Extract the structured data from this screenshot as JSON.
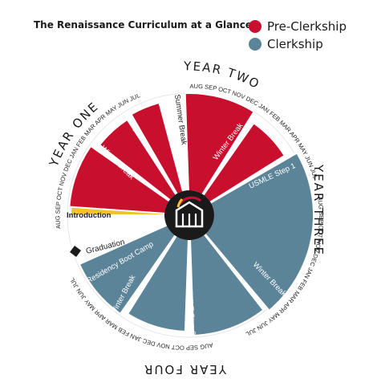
{
  "header": {
    "title": "The Renaissance Curriculum at a Glance:"
  },
  "legend": [
    {
      "label": "Pre-Clerkship",
      "color": "#c8102e"
    },
    {
      "label": "Clerkship",
      "color": "#5b8499"
    }
  ],
  "colors": {
    "gold": "#f3c32b",
    "dark": "#222222"
  },
  "years": {
    "one": "YEAR ONE",
    "two": "YEAR TWO",
    "three": "YEAR THREE",
    "four": "YEAR FOUR"
  },
  "labels": {
    "winter_break_1": "Winter Break",
    "spring_break": "Spring Break",
    "summer_break": "Summer Break",
    "winter_break_2": "Winter Break",
    "usmle_1": "USMLE Step 1",
    "winter_break_3": "Winter Break",
    "usmle_2": "USMLE Step 2",
    "winter_break_4": "Winter Break",
    "boot_camp": "Residency Boot Camp",
    "introduction": "Introduction",
    "graduation": "Graduation"
  },
  "months": {
    "y1": [
      "AUG",
      "SEP",
      "OCT",
      "NOV",
      "DEC",
      "JAN",
      "FEB",
      "MAR",
      "APR",
      "MAY",
      "JUN",
      "JUL"
    ],
    "y2": [
      "AUG",
      "SEP",
      "OCT",
      "NOV",
      "DEC",
      "JAN",
      "FEB",
      "MAR",
      "APR",
      "MAY",
      "JUN",
      "JUL"
    ],
    "y3": [
      "AUG",
      "SEP",
      "OCT",
      "NOV",
      "DEC",
      "JAN",
      "FEB",
      "MAR",
      "APR",
      "MAY",
      "JUN",
      "JUL"
    ],
    "y4": [
      "AUG",
      "SEP",
      "OCT",
      "NOV",
      "DEC",
      "JAN",
      "FEB",
      "MAR",
      "APR",
      "MAY",
      "JUN",
      "JUL"
    ]
  }
}
